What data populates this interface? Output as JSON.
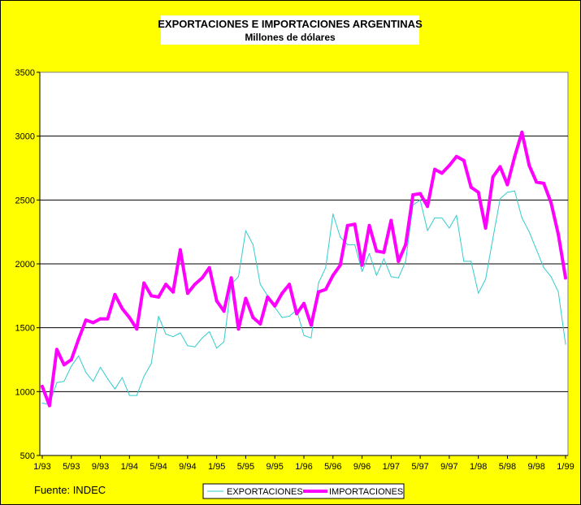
{
  "chart_data": {
    "type": "line",
    "title": "EXPORTACIONES E IMPORTACIONES ARGENTINAS",
    "subtitle": "Millones de dólares",
    "source": "Fuente:  INDEC",
    "ylim": [
      500,
      3500
    ],
    "yticks": [
      500,
      1000,
      1500,
      2000,
      2500,
      3000,
      3500
    ],
    "xtick_labels": [
      "1/93",
      "5/93",
      "9/93",
      "1/94",
      "5/94",
      "9/94",
      "1/95",
      "5/95",
      "9/95",
      "1/96",
      "5/96",
      "9/96",
      "1/97",
      "5/97",
      "9/97",
      "1/98",
      "5/98",
      "9/98",
      "1/99"
    ],
    "grid": true,
    "legend_position": "bottom-center",
    "n_months": 73,
    "series": [
      {
        "name": "EXPORTACIONES",
        "color": "#33cccc",
        "values": [
          910,
          900,
          1070,
          1080,
          1200,
          1280,
          1150,
          1080,
          1190,
          1100,
          1020,
          1110,
          970,
          970,
          1120,
          1220,
          1590,
          1450,
          1430,
          1460,
          1360,
          1350,
          1420,
          1470,
          1340,
          1390,
          1840,
          1900,
          2260,
          2150,
          1840,
          1750,
          1660,
          1580,
          1590,
          1640,
          1440,
          1420,
          1850,
          1970,
          2390,
          2210,
          2150,
          2150,
          1940,
          2080,
          1910,
          2040,
          1900,
          1890,
          2020,
          2460,
          2500,
          2260,
          2360,
          2360,
          2280,
          2380,
          2020,
          2020,
          1770,
          1880,
          2200,
          2510,
          2560,
          2570,
          2360,
          2250,
          2110,
          1970,
          1900,
          1780,
          1370
        ]
      },
      {
        "name": "IMPORTACIONES",
        "color": "#ff00ff",
        "values": [
          1040,
          890,
          1330,
          1210,
          1250,
          1410,
          1560,
          1540,
          1570,
          1570,
          1760,
          1650,
          1580,
          1490,
          1850,
          1750,
          1740,
          1840,
          1780,
          2110,
          1770,
          1840,
          1890,
          1970,
          1710,
          1630,
          1890,
          1490,
          1730,
          1580,
          1530,
          1740,
          1670,
          1770,
          1840,
          1610,
          1690,
          1520,
          1780,
          1800,
          1910,
          1990,
          2300,
          2310,
          1990,
          2300,
          2100,
          2090,
          2340,
          2020,
          2150,
          2540,
          2550,
          2450,
          2740,
          2710,
          2770,
          2840,
          2810,
          2600,
          2560,
          2280,
          2680,
          2760,
          2620,
          2840,
          3030,
          2770,
          2640,
          2630,
          2480,
          2230,
          1890
        ]
      }
    ]
  }
}
